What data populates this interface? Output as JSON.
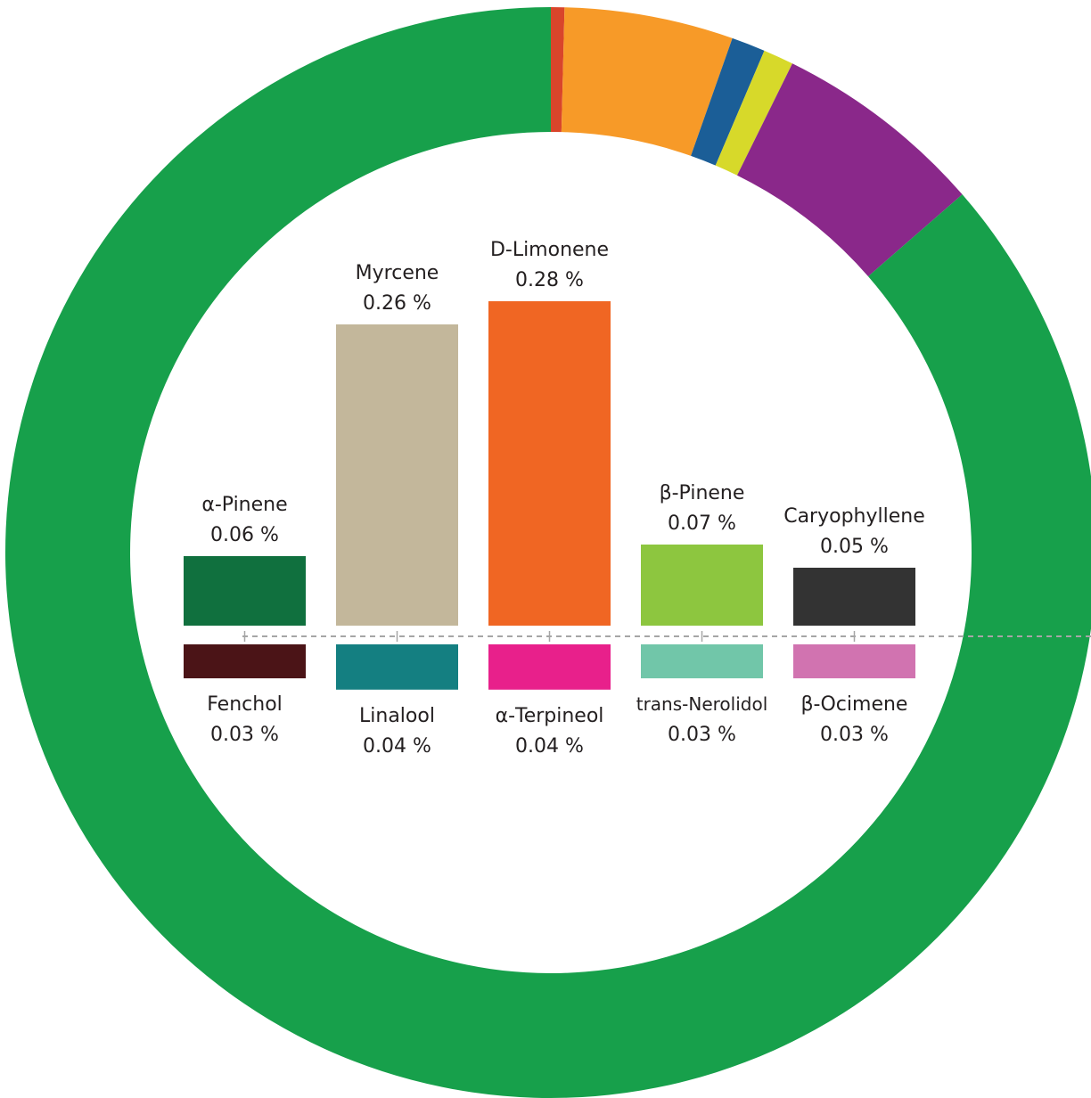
{
  "chart_data": [
    {
      "type": "pie",
      "style": "donut",
      "start_angle": "top (12 o'clock)",
      "direction": "clockwise",
      "slices": [
        {
          "value": 0.4,
          "color": "#d9452b"
        },
        {
          "value": 5.0,
          "color": "#f79a28"
        },
        {
          "value": 1.0,
          "color": "#1b5e97"
        },
        {
          "value": 0.9,
          "color": "#d7d92a"
        },
        {
          "value": 6.3,
          "color": "#8a288a"
        },
        {
          "value": 86.4,
          "color": "#17a04b"
        }
      ]
    },
    {
      "type": "bar",
      "orientation": "diverging",
      "unit": "%",
      "above": [
        {
          "label": "α-Pinene",
          "value": 0.06,
          "value_text": "0.06 %",
          "color": "#10703e"
        },
        {
          "label": "Myrcene",
          "value": 0.26,
          "value_text": "0.26 %",
          "color": "#c3b79b"
        },
        {
          "label": "D-Limonene",
          "value": 0.28,
          "value_text": "0.28 %",
          "color": "#f06623"
        },
        {
          "label": "β-Pinene",
          "value": 0.07,
          "value_text": "0.07 %",
          "color": "#8dc63f"
        },
        {
          "label": "Caryophyllene",
          "value": 0.05,
          "value_text": "0.05 %",
          "color": "#333333"
        }
      ],
      "below": [
        {
          "label": "Fenchol",
          "value": 0.03,
          "value_text": "0.03 %",
          "color": "#4b1417"
        },
        {
          "label": "Linalool",
          "value": 0.04,
          "value_text": "0.04 %",
          "color": "#147f81"
        },
        {
          "label": "α-Terpineol",
          "value": 0.04,
          "value_text": "0.04 %",
          "color": "#e8208b"
        },
        {
          "label": "trans-Nerolidol",
          "value": 0.03,
          "value_text": "0.03 %",
          "color": "#71c6a9"
        },
        {
          "label": "β-Ocimene",
          "value": 0.03,
          "value_text": "0.03 %",
          "color": "#d173b0"
        }
      ],
      "baseline_style": "dashed",
      "grid": false
    }
  ]
}
